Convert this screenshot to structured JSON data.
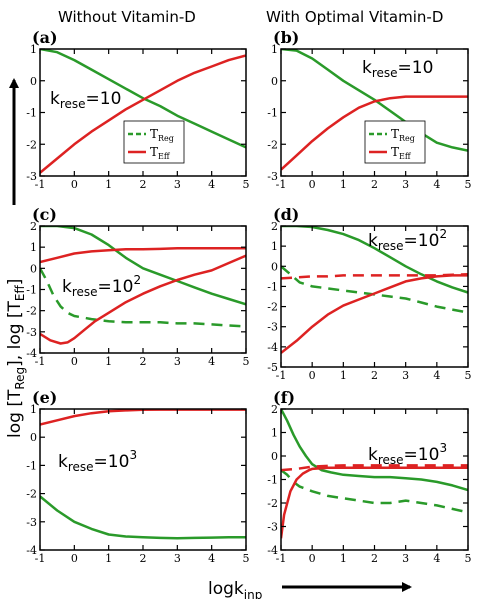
{
  "colors": {
    "treg": "#2a9a2a",
    "teff": "#dd2222"
  },
  "column_titles": [
    "Without Vitamin-D",
    "With Optimal Vitamin-D"
  ],
  "y_axis_label": {
    "base": "log [T",
    "sub1": "Reg",
    "mid": "], log [T",
    "sub2": "Eff",
    "end": "]"
  },
  "x_axis_label": {
    "base": "logk",
    "sub": "inp"
  },
  "legend": {
    "treg": {
      "base": "T",
      "sub": "Reg"
    },
    "teff": {
      "base": "T",
      "sub": "Eff"
    }
  },
  "chart_data": [
    {
      "label": "(a)",
      "type": "line",
      "k_text": {
        "base": "k",
        "sub": "rese",
        "eq": "=10",
        "sup": ""
      },
      "xlim": [
        -1,
        5
      ],
      "ylim": [
        -3,
        1
      ],
      "xticks": [
        -1,
        0,
        1,
        2,
        3,
        4,
        5
      ],
      "yticks": [
        -3,
        -2,
        -1,
        0,
        1
      ],
      "legend": true,
      "series": [
        {
          "key": "treg",
          "dashed": false,
          "x": [
            -1,
            -0.5,
            0,
            0.5,
            1,
            1.5,
            2,
            2.5,
            3,
            3.5,
            4,
            4.5,
            5
          ],
          "y": [
            1.0,
            0.9,
            0.65,
            0.35,
            0.05,
            -0.25,
            -0.55,
            -0.8,
            -1.1,
            -1.35,
            -1.6,
            -1.85,
            -2.1
          ]
        },
        {
          "key": "teff",
          "dashed": false,
          "x": [
            -1,
            -0.5,
            0,
            0.5,
            1,
            1.5,
            2,
            2.5,
            3,
            3.5,
            4,
            4.5,
            5
          ],
          "y": [
            -2.9,
            -2.45,
            -2.0,
            -1.6,
            -1.25,
            -0.9,
            -0.6,
            -0.3,
            0.0,
            0.25,
            0.45,
            0.65,
            0.8
          ]
        }
      ]
    },
    {
      "label": "(b)",
      "type": "line",
      "k_text": {
        "base": "k",
        "sub": "rese",
        "eq": "=10",
        "sup": ""
      },
      "xlim": [
        -1,
        5
      ],
      "ylim": [
        -3,
        1
      ],
      "xticks": [
        -1,
        0,
        1,
        2,
        3,
        4,
        5
      ],
      "yticks": [
        -3,
        -2,
        -1,
        0,
        1
      ],
      "legend": true,
      "series": [
        {
          "key": "treg",
          "dashed": false,
          "x": [
            -1,
            -0.5,
            0,
            0.5,
            1,
            1.5,
            2,
            2.5,
            3,
            3.5,
            4,
            4.5,
            5
          ],
          "y": [
            1.0,
            0.95,
            0.7,
            0.35,
            0.0,
            -0.3,
            -0.6,
            -0.95,
            -1.3,
            -1.65,
            -1.95,
            -2.1,
            -2.2
          ]
        },
        {
          "key": "teff",
          "dashed": false,
          "x": [
            -1,
            -0.5,
            0,
            0.5,
            1,
            1.5,
            2,
            2.5,
            3,
            3.5,
            4,
            4.5,
            5
          ],
          "y": [
            -2.8,
            -2.35,
            -1.9,
            -1.5,
            -1.15,
            -0.85,
            -0.65,
            -0.55,
            -0.5,
            -0.5,
            -0.5,
            -0.5,
            -0.5
          ]
        }
      ]
    },
    {
      "label": "(c)",
      "type": "line",
      "k_text": {
        "base": "k",
        "sub": "rese",
        "eq": "=10",
        "sup": "2"
      },
      "xlim": [
        -1,
        5
      ],
      "ylim": [
        -4,
        2
      ],
      "xticks": [
        -1,
        0,
        1,
        2,
        3,
        4,
        5
      ],
      "yticks": [
        -4,
        -3,
        -2,
        -1,
        0,
        1,
        2
      ],
      "legend": false,
      "series": [
        {
          "key": "treg",
          "dashed": false,
          "x": [
            -1,
            -0.5,
            0,
            0.5,
            1,
            1.5,
            2,
            2.5,
            3,
            3.5,
            4,
            4.5,
            5
          ],
          "y": [
            2.0,
            2.0,
            1.9,
            1.6,
            1.1,
            0.5,
            0.0,
            -0.3,
            -0.6,
            -0.9,
            -1.2,
            -1.45,
            -1.7
          ]
        },
        {
          "key": "treg",
          "dashed": true,
          "x": [
            -1,
            -0.8,
            -0.6,
            -0.4,
            -0.2,
            0,
            0.5,
            1,
            1.5,
            2,
            2.5,
            3,
            3.5,
            4,
            4.5,
            5
          ],
          "y": [
            0.0,
            -0.6,
            -1.3,
            -1.8,
            -2.1,
            -2.25,
            -2.4,
            -2.5,
            -2.55,
            -2.55,
            -2.55,
            -2.6,
            -2.6,
            -2.65,
            -2.7,
            -2.75
          ]
        },
        {
          "key": "teff",
          "dashed": false,
          "x": [
            -1,
            -0.5,
            0,
            0.5,
            1,
            1.5,
            2,
            2.5,
            3,
            3.5,
            4,
            4.5,
            5
          ],
          "y": [
            0.3,
            0.5,
            0.7,
            0.8,
            0.85,
            0.9,
            0.9,
            0.92,
            0.95,
            0.95,
            0.95,
            0.95,
            0.95
          ]
        },
        {
          "key": "teff",
          "dashed": false,
          "x": [
            -1,
            -0.7,
            -0.4,
            -0.2,
            0,
            0.3,
            0.6,
            1,
            1.5,
            2,
            2.5,
            3,
            3.5,
            4,
            4.5,
            5
          ],
          "y": [
            -3.1,
            -3.4,
            -3.55,
            -3.5,
            -3.3,
            -2.9,
            -2.5,
            -2.1,
            -1.6,
            -1.2,
            -0.85,
            -0.55,
            -0.3,
            -0.1,
            0.25,
            0.6
          ]
        }
      ]
    },
    {
      "label": "(d)",
      "type": "line",
      "k_text": {
        "base": "k",
        "sub": "rese",
        "eq": "=10",
        "sup": "2"
      },
      "xlim": [
        -1,
        5
      ],
      "ylim": [
        -5,
        2
      ],
      "xticks": [
        -1,
        0,
        1,
        2,
        3,
        4,
        5
      ],
      "yticks": [
        -5,
        -4,
        -3,
        -2,
        -1,
        0,
        1,
        2
      ],
      "legend": false,
      "series": [
        {
          "key": "treg",
          "dashed": false,
          "x": [
            -1,
            -0.5,
            0,
            0.5,
            1,
            1.5,
            2,
            2.5,
            3,
            3.5,
            4,
            4.5,
            5
          ],
          "y": [
            2.0,
            2.0,
            1.95,
            1.8,
            1.6,
            1.3,
            0.9,
            0.45,
            0.0,
            -0.4,
            -0.75,
            -1.05,
            -1.3
          ]
        },
        {
          "key": "treg",
          "dashed": true,
          "x": [
            -1,
            -0.7,
            -0.4,
            0,
            0.5,
            1,
            1.5,
            2,
            2.5,
            3,
            3.5,
            4,
            4.5,
            5
          ],
          "y": [
            0.0,
            -0.4,
            -0.8,
            -1.0,
            -1.1,
            -1.2,
            -1.3,
            -1.4,
            -1.5,
            -1.6,
            -1.8,
            -2.0,
            -2.15,
            -2.3
          ]
        },
        {
          "key": "teff",
          "dashed": true,
          "x": [
            -1,
            -0.5,
            0,
            0.5,
            1,
            1.5,
            2,
            2.5,
            3,
            3.5,
            4,
            4.5,
            5
          ],
          "y": [
            -0.6,
            -0.55,
            -0.5,
            -0.5,
            -0.45,
            -0.45,
            -0.45,
            -0.45,
            -0.45,
            -0.45,
            -0.45,
            -0.42,
            -0.4
          ]
        },
        {
          "key": "teff",
          "dashed": false,
          "x": [
            -1,
            -0.5,
            0,
            0.5,
            1,
            1.5,
            2,
            2.5,
            3,
            3.5,
            4,
            4.5,
            5
          ],
          "y": [
            -4.3,
            -3.7,
            -3.0,
            -2.4,
            -1.95,
            -1.65,
            -1.35,
            -1.05,
            -0.75,
            -0.6,
            -0.5,
            -0.45,
            -0.45
          ]
        }
      ]
    },
    {
      "label": "(e)",
      "type": "line",
      "k_text": {
        "base": "k",
        "sub": "rese",
        "eq": "=10",
        "sup": "3"
      },
      "xlim": [
        -1,
        5
      ],
      "ylim": [
        -4,
        1
      ],
      "xticks": [
        -1,
        0,
        1,
        2,
        3,
        4,
        5
      ],
      "yticks": [
        -4,
        -3,
        -2,
        -1,
        0,
        1
      ],
      "legend": false,
      "series": [
        {
          "key": "teff",
          "dashed": false,
          "x": [
            -1,
            -0.5,
            0,
            0.5,
            1,
            1.5,
            2,
            2.5,
            3,
            3.5,
            4,
            4.5,
            5
          ],
          "y": [
            0.45,
            0.6,
            0.75,
            0.85,
            0.92,
            0.95,
            0.97,
            0.98,
            0.98,
            0.98,
            0.98,
            0.98,
            0.98
          ]
        },
        {
          "key": "treg",
          "dashed": false,
          "x": [
            -1,
            -0.5,
            0,
            0.5,
            1,
            1.5,
            2,
            2.5,
            3,
            3.5,
            4,
            4.5,
            5
          ],
          "y": [
            -2.1,
            -2.6,
            -3.0,
            -3.25,
            -3.45,
            -3.52,
            -3.55,
            -3.57,
            -3.58,
            -3.57,
            -3.56,
            -3.55,
            -3.55
          ]
        }
      ]
    },
    {
      "label": "(f)",
      "type": "line",
      "k_text": {
        "base": "k",
        "sub": "rese",
        "eq": "=10",
        "sup": "3"
      },
      "xlim": [
        -1,
        5
      ],
      "ylim": [
        -4,
        2
      ],
      "xticks": [
        -1,
        0,
        1,
        2,
        3,
        4,
        5
      ],
      "yticks": [
        -4,
        -3,
        -2,
        -1,
        0,
        1,
        2
      ],
      "legend": false,
      "series": [
        {
          "key": "treg",
          "dashed": false,
          "x": [
            -1,
            -0.8,
            -0.6,
            -0.4,
            -0.2,
            0,
            0.3,
            0.6,
            1,
            1.5,
            2,
            2.5,
            3,
            3.5,
            4,
            4.5,
            5
          ],
          "y": [
            2.0,
            1.5,
            0.9,
            0.4,
            0.0,
            -0.35,
            -0.6,
            -0.7,
            -0.8,
            -0.85,
            -0.9,
            -0.9,
            -0.95,
            -1.0,
            -1.1,
            -1.25,
            -1.45
          ]
        },
        {
          "key": "treg",
          "dashed": true,
          "x": [
            -1,
            -0.8,
            -0.6,
            -0.4,
            -0.2,
            0,
            0.5,
            1,
            1.5,
            2,
            2.5,
            3,
            3.5,
            4,
            4.5,
            5
          ],
          "y": [
            -0.6,
            -0.8,
            -1.1,
            -1.3,
            -1.4,
            -1.5,
            -1.7,
            -1.8,
            -1.9,
            -2.0,
            -2.0,
            -1.9,
            -2.0,
            -2.1,
            -2.25,
            -2.4
          ]
        },
        {
          "key": "teff",
          "dashed": true,
          "x": [
            -1,
            -0.5,
            0,
            0.5,
            1,
            1.5,
            2,
            2.5,
            3,
            3.5,
            4,
            4.5,
            5
          ],
          "y": [
            -0.6,
            -0.55,
            -0.45,
            -0.42,
            -0.4,
            -0.4,
            -0.4,
            -0.4,
            -0.4,
            -0.4,
            -0.4,
            -0.4,
            -0.4
          ]
        },
        {
          "key": "teff",
          "dashed": false,
          "x": [
            -1,
            -0.9,
            -0.7,
            -0.5,
            -0.3,
            -0.1,
            0,
            0.5,
            1,
            1.5,
            2,
            2.5,
            3,
            3.5,
            4,
            4.5,
            5
          ],
          "y": [
            -3.5,
            -2.5,
            -1.5,
            -1.0,
            -0.75,
            -0.6,
            -0.55,
            -0.5,
            -0.5,
            -0.5,
            -0.5,
            -0.5,
            -0.5,
            -0.5,
            -0.5,
            -0.5,
            -0.5
          ]
        }
      ]
    }
  ]
}
